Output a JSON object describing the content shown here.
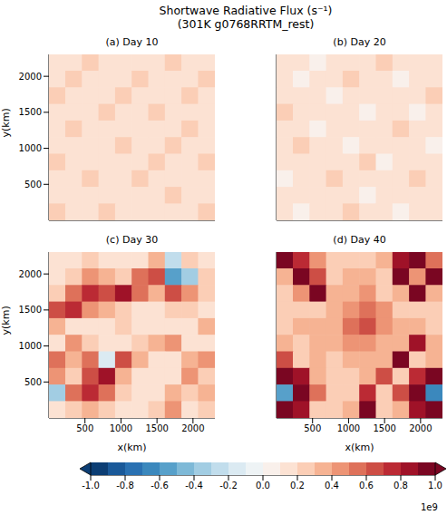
{
  "chart_data": {
    "type": "heatmap",
    "title": "Shortwave Radiative Flux (s⁻¹)",
    "subtitle": "(301K g0768RRTM_rest)",
    "panels": [
      {
        "title": "(a) Day 10",
        "ylabel": "y(km)",
        "tick_labels": "y",
        "xlim": [
          0,
          2304
        ],
        "ylim": [
          0,
          2304
        ],
        "xticks": [
          500,
          1000,
          1500,
          2000
        ],
        "yticks": [
          500,
          1000,
          1500,
          2000
        ],
        "cells": [
          [
            0.1,
            0.1,
            0.2,
            0.1,
            0.1,
            0.1,
            0.1,
            0.2,
            0.1,
            0.1
          ],
          [
            0.1,
            0.2,
            0.1,
            0.1,
            0.1,
            0.2,
            0.1,
            0.1,
            0.1,
            0.2
          ],
          [
            0.2,
            0.1,
            0.1,
            0.1,
            0.2,
            0.1,
            0.1,
            0.1,
            0.2,
            0.1
          ],
          [
            0.1,
            0.1,
            0.1,
            0.2,
            0.1,
            0.1,
            0.2,
            0.1,
            0.1,
            0.1
          ],
          [
            0.1,
            0.2,
            0.1,
            0.1,
            0.1,
            0.1,
            0.1,
            0.1,
            0.2,
            0.1
          ],
          [
            0.1,
            0.1,
            0.1,
            0.1,
            0.2,
            0.1,
            0.1,
            0.2,
            0.1,
            0.1
          ],
          [
            0.2,
            0.1,
            0.1,
            0.1,
            0.1,
            0.1,
            0.2,
            0.1,
            0.1,
            0.2
          ],
          [
            0.1,
            0.1,
            0.2,
            0.1,
            0.1,
            0.2,
            0.1,
            0.1,
            0.1,
            0.1
          ],
          [
            0.1,
            0.1,
            0.1,
            0.1,
            0.1,
            0.1,
            0.1,
            0.2,
            0.1,
            0.1
          ],
          [
            0.2,
            0.1,
            0.1,
            0.2,
            0.1,
            0.1,
            0.1,
            0.1,
            0.1,
            0.2
          ]
        ]
      },
      {
        "title": "(b) Day 20",
        "tick_labels": false,
        "xlim": [
          0,
          2304
        ],
        "ylim": [
          0,
          2304
        ],
        "xticks": [
          500,
          1000,
          1500,
          2000
        ],
        "yticks": [
          500,
          1000,
          1500,
          2000
        ],
        "cells": [
          [
            0.1,
            0.1,
            0.0,
            0.1,
            0.1,
            0.1,
            0.2,
            0.1,
            0.1,
            0.1
          ],
          [
            0.1,
            0.0,
            0.1,
            0.1,
            0.2,
            0.1,
            0.1,
            0.0,
            0.1,
            0.1
          ],
          [
            0.1,
            0.1,
            0.1,
            0.0,
            0.1,
            0.1,
            0.1,
            0.1,
            0.1,
            0.2
          ],
          [
            0.2,
            0.1,
            0.1,
            0.1,
            0.1,
            0.0,
            0.1,
            0.1,
            0.0,
            0.1
          ],
          [
            0.1,
            0.1,
            0.0,
            0.1,
            0.1,
            0.1,
            0.1,
            0.2,
            0.1,
            0.1
          ],
          [
            0.1,
            0.2,
            0.1,
            0.1,
            0.0,
            0.1,
            0.1,
            0.1,
            0.1,
            0.0
          ],
          [
            0.1,
            0.1,
            0.1,
            0.1,
            0.1,
            0.2,
            0.0,
            0.1,
            0.1,
            0.1
          ],
          [
            0.0,
            0.1,
            0.1,
            0.2,
            0.1,
            0.1,
            0.1,
            0.1,
            0.2,
            0.1
          ],
          [
            0.1,
            0.1,
            0.1,
            0.1,
            0.1,
            0.0,
            0.1,
            0.1,
            0.1,
            0.1
          ],
          [
            0.1,
            0.0,
            0.1,
            0.1,
            0.2,
            0.1,
            0.1,
            0.0,
            0.1,
            0.1
          ]
        ]
      },
      {
        "title": "(c) Day 30",
        "xlabel": "x(km)",
        "ylabel": "y(km)",
        "xlim": [
          0,
          2304
        ],
        "ylim": [
          0,
          2304
        ],
        "xticks": [
          500,
          1000,
          1500,
          2000
        ],
        "yticks": [
          500,
          1000,
          1500,
          2000
        ],
        "cells": [
          [
            0.1,
            0.1,
            0.2,
            0.1,
            0.1,
            0.1,
            0.3,
            -0.3,
            0.2,
            0.1
          ],
          [
            0.1,
            0.2,
            0.4,
            0.3,
            0.2,
            0.5,
            0.6,
            -0.6,
            -0.4,
            0.2
          ],
          [
            0.2,
            0.5,
            0.7,
            0.6,
            0.8,
            0.5,
            0.3,
            0.6,
            0.4,
            0.2
          ],
          [
            0.6,
            0.7,
            0.4,
            0.3,
            0.2,
            0.1,
            0.1,
            0.2,
            0.2,
            0.1
          ],
          [
            0.3,
            0.1,
            0.1,
            0.1,
            0.2,
            0.1,
            0.1,
            0.1,
            0.1,
            0.3
          ],
          [
            0.1,
            0.4,
            0.2,
            0.1,
            0.1,
            0.2,
            0.3,
            0.4,
            0.1,
            0.1
          ],
          [
            0.5,
            0.3,
            0.5,
            -0.2,
            0.6,
            0.3,
            0.1,
            0.1,
            0.3,
            0.4
          ],
          [
            0.4,
            0.2,
            0.6,
            0.8,
            0.3,
            0.1,
            0.1,
            0.1,
            0.4,
            0.2
          ],
          [
            -0.4,
            0.5,
            0.7,
            0.5,
            0.2,
            0.1,
            0.1,
            0.3,
            0.2,
            0.3
          ],
          [
            0.1,
            0.2,
            0.3,
            0.2,
            0.1,
            0.1,
            0.2,
            0.4,
            0.1,
            0.2
          ]
        ]
      },
      {
        "title": "(d) Day 40",
        "xlabel": "x(km)",
        "tick_labels": "x",
        "xlim": [
          0,
          2304
        ],
        "ylim": [
          0,
          2304
        ],
        "xticks": [
          500,
          1000,
          1500,
          2000
        ],
        "yticks": [
          500,
          1000,
          1500,
          2000
        ],
        "cells": [
          [
            0.9,
            0.7,
            0.4,
            0.2,
            0.2,
            0.2,
            0.3,
            0.8,
            0.9,
            0.5
          ],
          [
            0.3,
            0.9,
            0.6,
            0.2,
            0.3,
            0.3,
            0.2,
            0.9,
            0.4,
            0.9
          ],
          [
            0.2,
            0.4,
            1.0,
            0.3,
            0.3,
            0.4,
            0.2,
            0.3,
            0.9,
            0.3
          ],
          [
            0.2,
            0.2,
            0.2,
            0.3,
            0.4,
            0.5,
            0.4,
            0.2,
            0.2,
            0.2
          ],
          [
            0.2,
            0.3,
            0.3,
            0.3,
            0.5,
            0.6,
            0.4,
            0.3,
            0.3,
            0.2
          ],
          [
            0.3,
            0.2,
            0.3,
            0.3,
            0.4,
            0.4,
            0.3,
            0.3,
            0.8,
            0.3
          ],
          [
            0.6,
            0.2,
            0.3,
            0.2,
            0.3,
            0.3,
            0.3,
            0.9,
            0.2,
            0.3
          ],
          [
            0.9,
            0.8,
            0.3,
            0.2,
            0.2,
            0.3,
            0.6,
            0.2,
            0.7,
            0.9
          ],
          [
            -0.6,
            1.0,
            0.5,
            0.2,
            0.2,
            0.7,
            0.2,
            0.6,
            1.0,
            -0.7
          ],
          [
            0.9,
            0.8,
            0.2,
            0.2,
            0.3,
            0.9,
            0.2,
            0.3,
            0.8,
            0.9
          ]
        ]
      }
    ],
    "colorbar": {
      "range": [
        -1,
        1
      ],
      "ticks": [
        {
          "value": -1,
          "label": "-1.0"
        },
        {
          "value": -0.8,
          "label": "-0.8"
        },
        {
          "value": -0.6,
          "label": "-0.6"
        },
        {
          "value": -0.4,
          "label": "-0.4"
        },
        {
          "value": -0.2,
          "label": "-0.2"
        },
        {
          "value": 0,
          "label": "0.0"
        },
        {
          "value": 0.2,
          "label": "0.2"
        },
        {
          "value": 0.4,
          "label": "0.4"
        },
        {
          "value": 0.6,
          "label": "0.6"
        },
        {
          "value": 0.8,
          "label": "0.8"
        },
        {
          "value": 1,
          "label": "1.0"
        }
      ],
      "offset_label": "1e9"
    }
  }
}
